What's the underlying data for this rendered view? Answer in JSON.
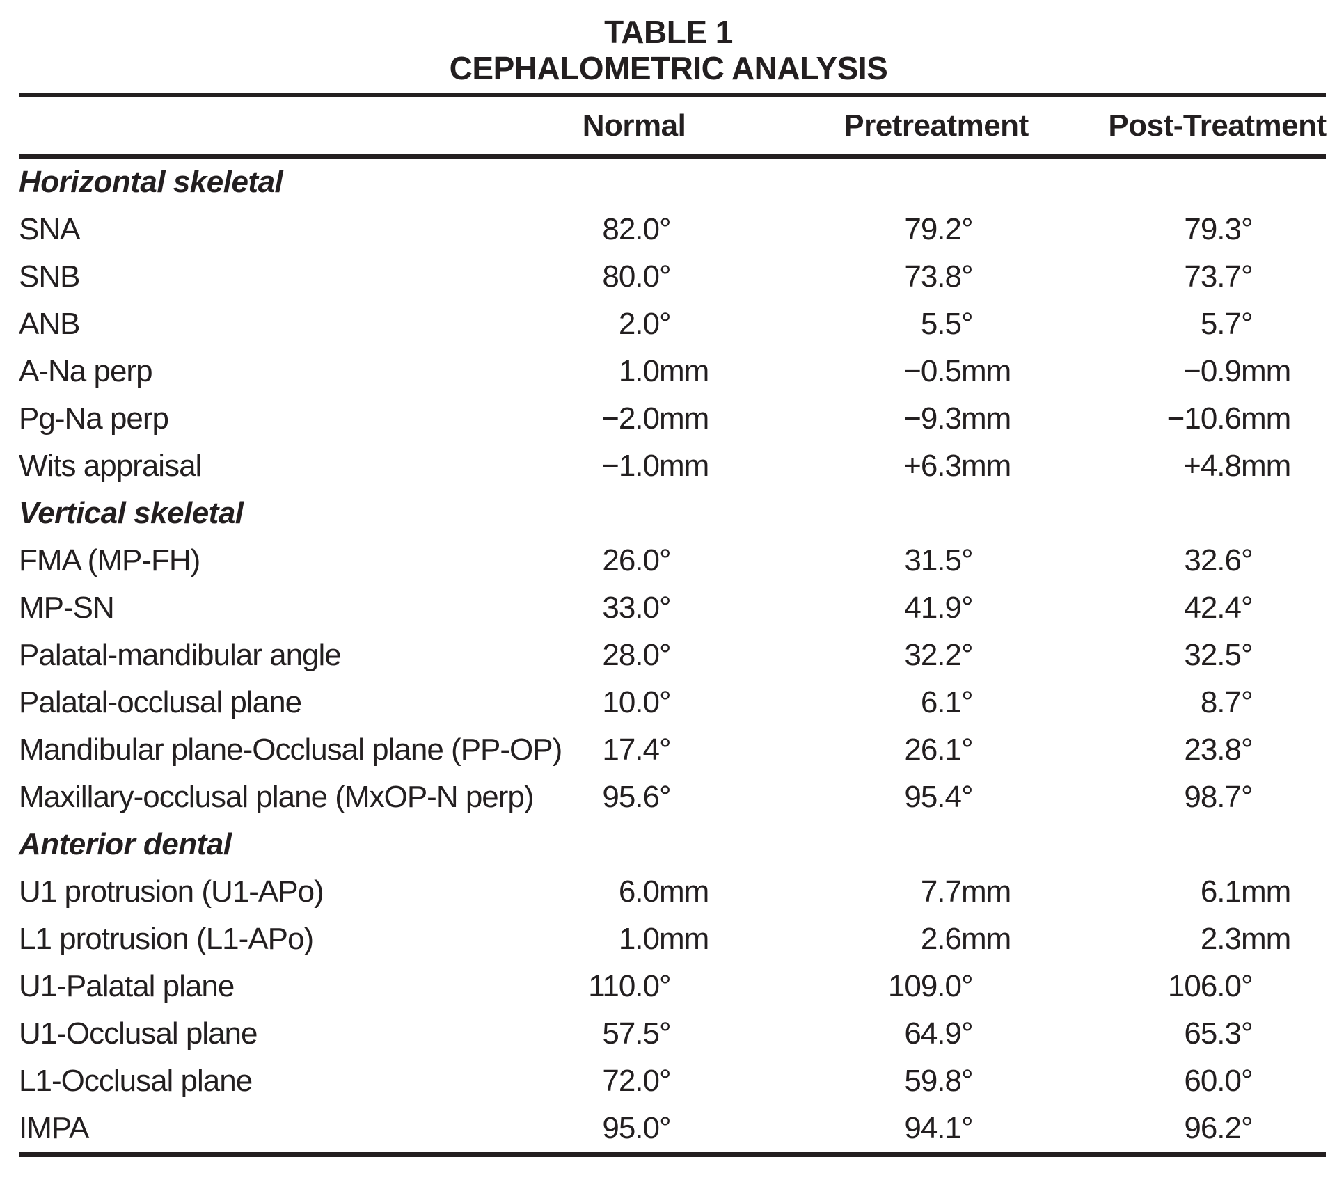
{
  "title": {
    "line1": "TABLE 1",
    "line2": "CEPHALOMETRIC ANALYSIS"
  },
  "columns": [
    "Normal",
    "Pretreatment",
    "Post-Treatment"
  ],
  "sections": [
    {
      "title": "Horizontal skeletal",
      "rows": [
        {
          "label": "SNA",
          "values": [
            {
              "num": "82.0",
              "unit": "°"
            },
            {
              "num": "79.2",
              "unit": "°"
            },
            {
              "num": "79.3",
              "unit": "°"
            }
          ]
        },
        {
          "label": "SNB",
          "values": [
            {
              "num": "80.0",
              "unit": "°"
            },
            {
              "num": "73.8",
              "unit": "°"
            },
            {
              "num": "73.7",
              "unit": "°"
            }
          ]
        },
        {
          "label": "ANB",
          "values": [
            {
              "num": "2.0",
              "unit": "°"
            },
            {
              "num": "5.5",
              "unit": "°"
            },
            {
              "num": "5.7",
              "unit": "°"
            }
          ]
        },
        {
          "label": "A-Na perp",
          "values": [
            {
              "num": "1.0",
              "unit": "mm"
            },
            {
              "num": "−0.5",
              "unit": "mm"
            },
            {
              "num": "−0.9",
              "unit": "mm"
            }
          ]
        },
        {
          "label": "Pg-Na perp",
          "values": [
            {
              "num": "−2.0",
              "unit": "mm"
            },
            {
              "num": "−9.3",
              "unit": "mm"
            },
            {
              "num": "−10.6",
              "unit": "mm"
            }
          ]
        },
        {
          "label": "Wits appraisal",
          "values": [
            {
              "num": "−1.0",
              "unit": "mm"
            },
            {
              "num": "+6.3",
              "unit": "mm"
            },
            {
              "num": "+4.8",
              "unit": "mm"
            }
          ]
        }
      ]
    },
    {
      "title": "Vertical skeletal",
      "rows": [
        {
          "label": "FMA (MP-FH)",
          "values": [
            {
              "num": "26.0",
              "unit": "°"
            },
            {
              "num": "31.5",
              "unit": "°"
            },
            {
              "num": "32.6",
              "unit": "°"
            }
          ]
        },
        {
          "label": "MP-SN",
          "values": [
            {
              "num": "33.0",
              "unit": "°"
            },
            {
              "num": "41.9",
              "unit": "°"
            },
            {
              "num": "42.4",
              "unit": "°"
            }
          ]
        },
        {
          "label": "Palatal-mandibular angle",
          "values": [
            {
              "num": "28.0",
              "unit": "°"
            },
            {
              "num": "32.2",
              "unit": "°"
            },
            {
              "num": "32.5",
              "unit": "°"
            }
          ]
        },
        {
          "label": "Palatal-occlusal plane",
          "values": [
            {
              "num": "10.0",
              "unit": "°"
            },
            {
              "num": "6.1",
              "unit": "°"
            },
            {
              "num": "8.7",
              "unit": "°"
            }
          ]
        },
        {
          "label": "Mandibular plane-Occlusal plane (PP-OP)",
          "values": [
            {
              "num": "17.4",
              "unit": "°"
            },
            {
              "num": "26.1",
              "unit": "°"
            },
            {
              "num": "23.8",
              "unit": "°"
            }
          ]
        },
        {
          "label": "Maxillary-occlusal plane (MxOP-N perp)",
          "values": [
            {
              "num": "95.6",
              "unit": "°"
            },
            {
              "num": "95.4",
              "unit": "°"
            },
            {
              "num": "98.7",
              "unit": "°"
            }
          ]
        }
      ]
    },
    {
      "title": "Anterior dental",
      "rows": [
        {
          "label": "U1 protrusion (U1-APo)",
          "values": [
            {
              "num": "6.0",
              "unit": "mm"
            },
            {
              "num": "7.7",
              "unit": "mm"
            },
            {
              "num": "6.1",
              "unit": "mm"
            }
          ]
        },
        {
          "label": "L1 protrusion (L1-APo)",
          "values": [
            {
              "num": "1.0",
              "unit": "mm"
            },
            {
              "num": "2.6",
              "unit": "mm"
            },
            {
              "num": "2.3",
              "unit": "mm"
            }
          ]
        },
        {
          "label": "U1-Palatal plane",
          "values": [
            {
              "num": "110.0",
              "unit": "°"
            },
            {
              "num": "109.0",
              "unit": "°"
            },
            {
              "num": "106.0",
              "unit": "°"
            }
          ]
        },
        {
          "label": "U1-Occlusal plane",
          "values": [
            {
              "num": "57.5",
              "unit": "°"
            },
            {
              "num": "64.9",
              "unit": "°"
            },
            {
              "num": "65.3",
              "unit": "°"
            }
          ]
        },
        {
          "label": "L1-Occlusal plane",
          "values": [
            {
              "num": "72.0",
              "unit": "°"
            },
            {
              "num": "59.8",
              "unit": "°"
            },
            {
              "num": "60.0",
              "unit": "°"
            }
          ]
        },
        {
          "label": "IMPA",
          "values": [
            {
              "num": "95.0",
              "unit": "°"
            },
            {
              "num": "94.1",
              "unit": "°"
            },
            {
              "num": "96.2",
              "unit": "°"
            }
          ]
        }
      ]
    }
  ]
}
